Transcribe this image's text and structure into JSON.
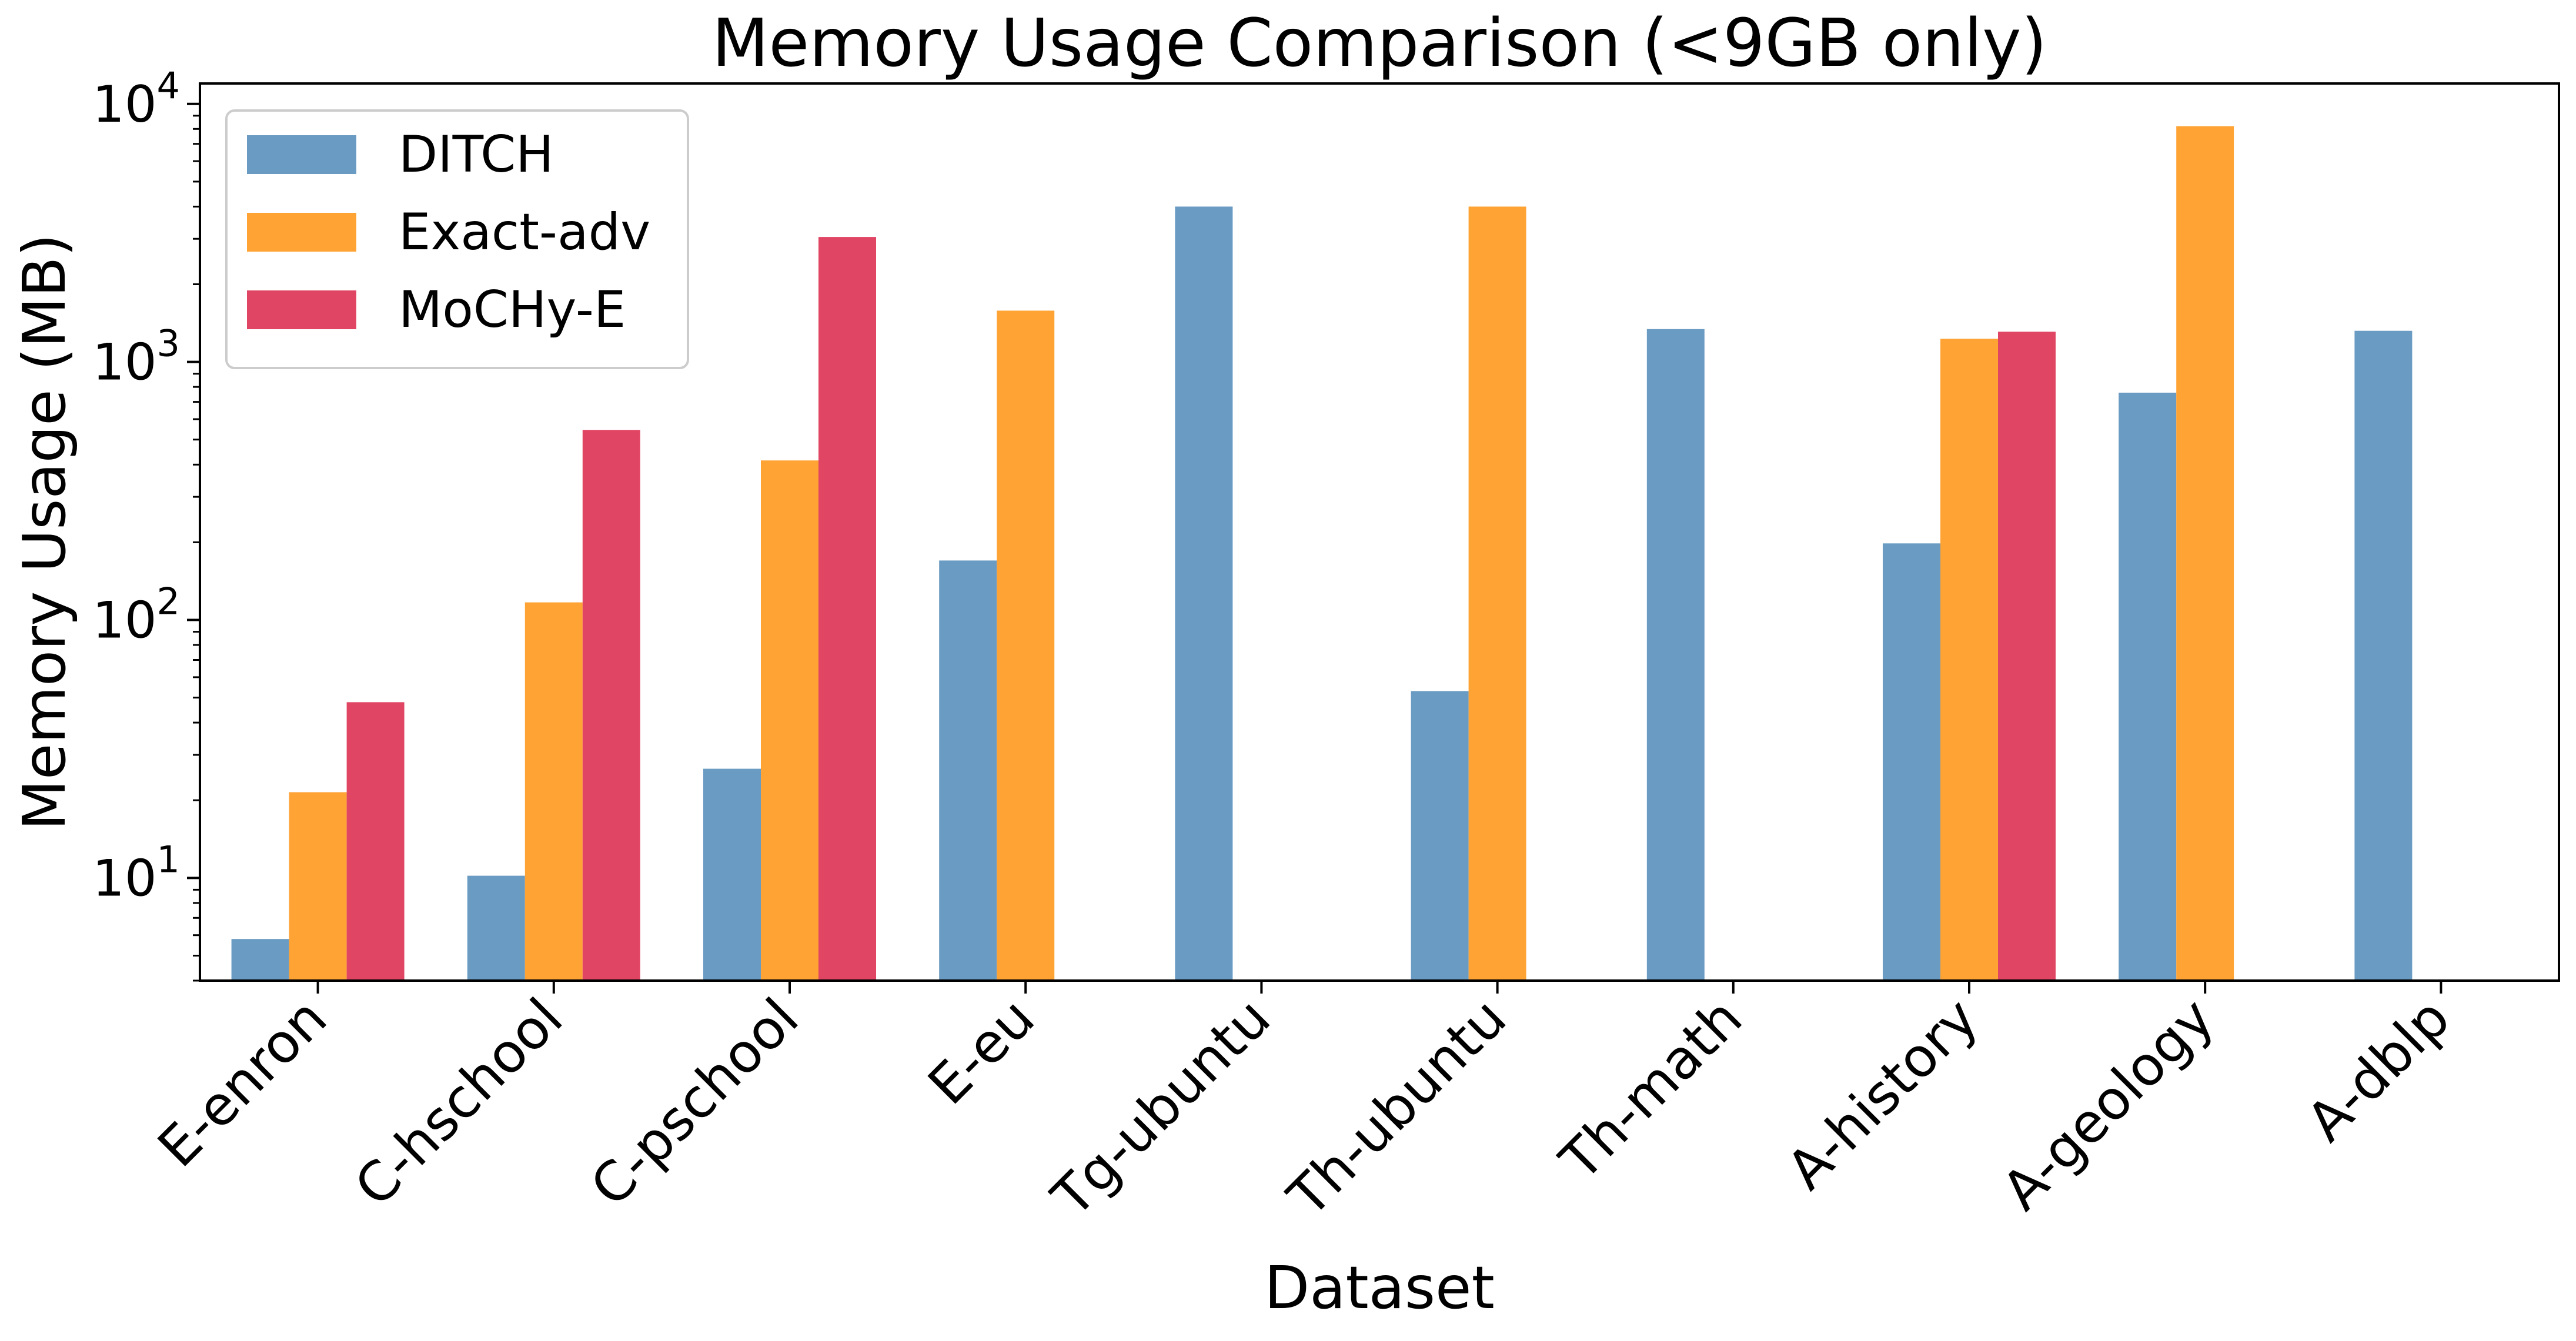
{
  "chart_data": {
    "type": "bar",
    "title": "Memory Usage Comparison (<9GB only)",
    "xlabel": "Dataset",
    "ylabel": "Memory Usage (MB)",
    "yscale": "log",
    "ylim": [
      4,
      12000
    ],
    "y_ticks": [
      {
        "value": 10,
        "base": "10",
        "exp": "1"
      },
      {
        "value": 100,
        "base": "10",
        "exp": "2"
      },
      {
        "value": 1000,
        "base": "10",
        "exp": "3"
      },
      {
        "value": 10000,
        "base": "10",
        "exp": "4"
      }
    ],
    "grid": false,
    "legend_position": "top-left",
    "categories": [
      "E-enron",
      "C-hschool",
      "C-pschool",
      "E-eu",
      "Tg-ubuntu",
      "Th-ubuntu",
      "Th-math",
      "A-history",
      "A-geology",
      "A-dblp"
    ],
    "series": [
      {
        "name": "DITCH",
        "color": "#6a9bc3",
        "values": [
          5.8,
          10.2,
          26.5,
          170,
          4000,
          53,
          1340,
          198,
          760,
          1320
        ]
      },
      {
        "name": "Exact-adv",
        "color": "#ffa335",
        "values": [
          21.5,
          117,
          415,
          1580,
          null,
          4000,
          null,
          1230,
          8200,
          null
        ]
      },
      {
        "name": "MoCHy-E",
        "color": "#e04563",
        "values": [
          48,
          545,
          3050,
          null,
          null,
          null,
          null,
          1310,
          null,
          null
        ]
      }
    ]
  }
}
